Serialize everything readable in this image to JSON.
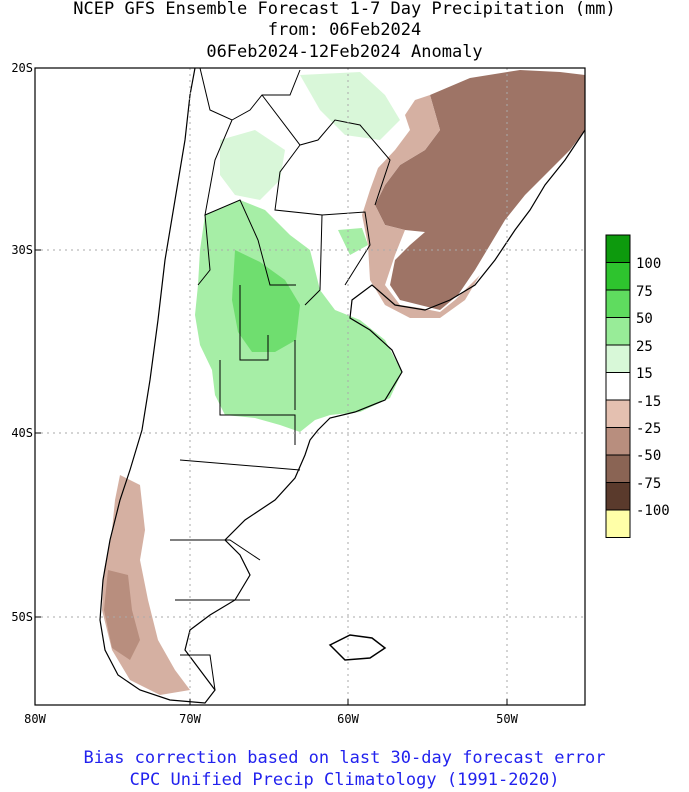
{
  "title": {
    "line1": "NCEP GFS Ensemble Forecast 1-7 Day Precipitation (mm)",
    "line2": "from: 06Feb2024",
    "line3": "06Feb2024-12Feb2024 Anomaly"
  },
  "axes": {
    "lat_labels": [
      "20S",
      "30S",
      "40S",
      "50S"
    ],
    "lon_labels": [
      "80W",
      "70W",
      "60W",
      "50W"
    ]
  },
  "legend": {
    "labels": [
      "100",
      "75",
      "50",
      "25",
      "15",
      "-15",
      "-25",
      "-50",
      "-75",
      "-100"
    ],
    "colors": [
      "#0d9a0d",
      "#2ec42e",
      "#5fdc5f",
      "#98ec98",
      "#d8f8d8",
      "#ffffff",
      "#e4c0b0",
      "#b88e7e",
      "#8a6454",
      "#5a3a2c",
      "#ffffa8"
    ]
  },
  "map_colors": {
    "wet": "#a6eea6",
    "wetter": "#6fde6f",
    "light_wet": "#d9f7d9",
    "dry": "#9e7466",
    "light_dry": "#d5b0a2",
    "border": "#000000",
    "grid": "#aaaaaa"
  },
  "footer": {
    "line1": "Bias correction based on last 30-day forecast error",
    "line2": "CPC Unified Precip Climatology (1991-2020)"
  }
}
